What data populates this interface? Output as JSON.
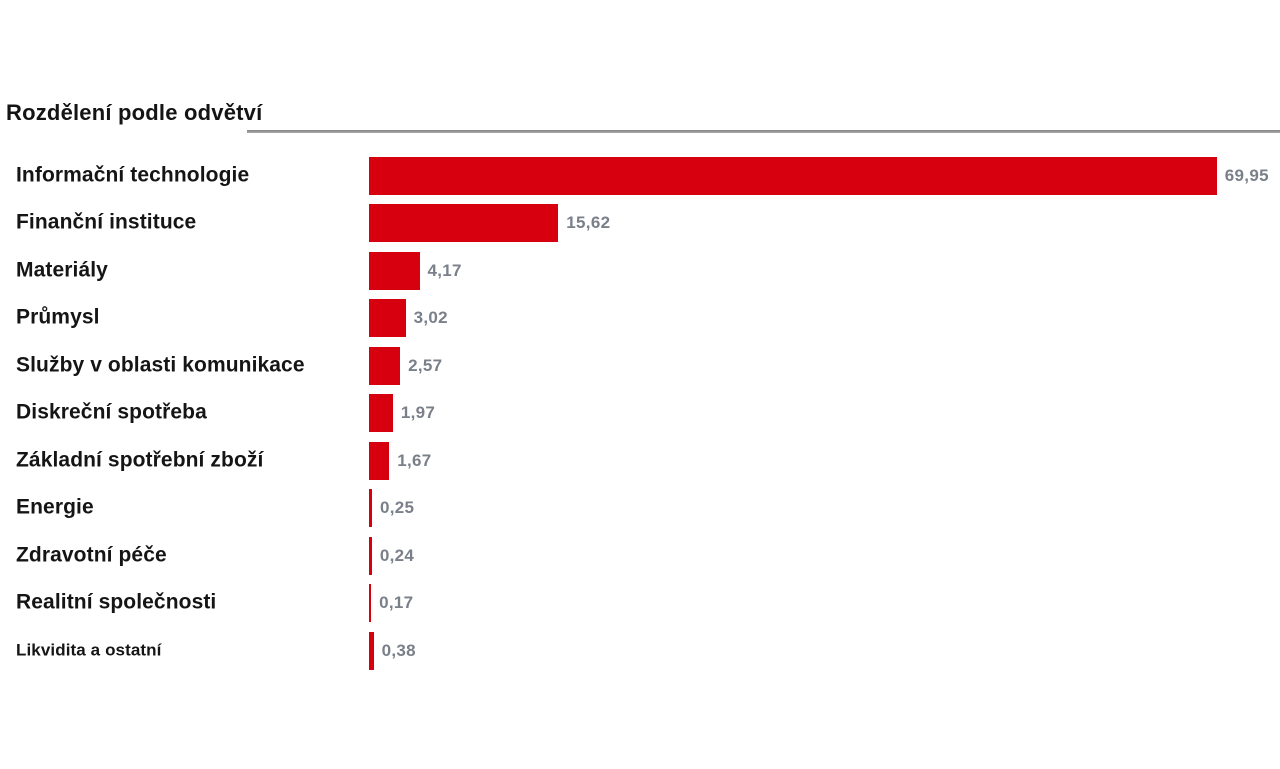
{
  "chart_data": {
    "type": "bar",
    "orientation": "horizontal",
    "title": "Rozdělení podle odvětví",
    "categories": [
      "Informační technologie",
      "Finanční instituce",
      "Materiály",
      "Průmysl",
      "Služby v oblasti komunikace",
      "Diskreční spotřeba",
      "Základní spotřební zboží",
      "Energie",
      "Zdravotní péče",
      "Realitní společnosti",
      "Likvidita a ostatní"
    ],
    "values": [
      69.95,
      15.62,
      4.17,
      3.02,
      2.57,
      1.97,
      1.67,
      0.25,
      0.24,
      0.17,
      0.38
    ],
    "display_values": [
      "69,95",
      "15,62",
      "4,17",
      "3,02",
      "2,57",
      "1,97",
      "1,67",
      "0,25",
      "0,24",
      "0,17",
      "0,38"
    ],
    "xlim": [
      0,
      75
    ],
    "unit": "%",
    "grid": false,
    "legend": false,
    "value_labels_position": "right-of-bar",
    "bar_color": "#d6000f",
    "value_label_color": "#7a808a",
    "title_color": "#141414",
    "divider_color": "#8f8f8f"
  }
}
